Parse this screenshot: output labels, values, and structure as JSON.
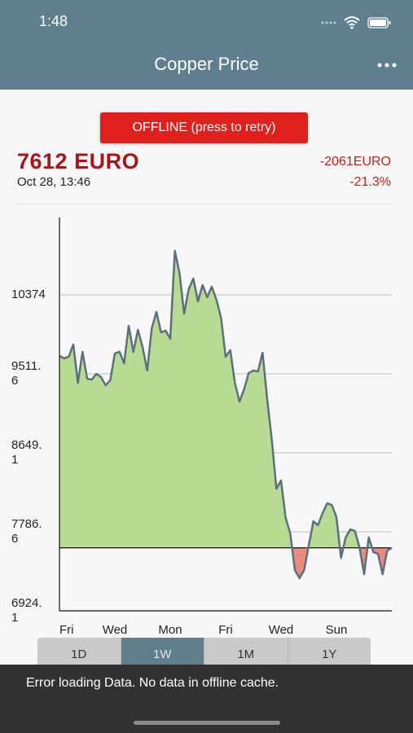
{
  "status_bar": {
    "time": "1:48"
  },
  "header": {
    "title": "Copper Price"
  },
  "offline_button": "OFFLINE (press to retry)",
  "quote": {
    "price": "7612 EURO",
    "timestamp": "Oct 28, 13:46",
    "change": "-2061EURO",
    "change_percent": "-21.3%"
  },
  "chart_data": {
    "type": "area",
    "x": [
      0,
      1,
      2,
      3,
      4,
      5,
      6,
      7,
      8,
      9,
      10,
      11,
      12,
      13,
      14,
      15,
      16,
      17,
      18,
      19,
      20,
      21,
      22,
      23,
      24,
      25,
      26,
      27,
      28,
      29,
      30,
      31,
      32,
      33,
      34,
      35,
      36,
      37,
      38,
      39,
      40,
      41,
      42,
      43,
      44,
      45,
      46,
      47,
      48,
      49,
      50,
      51,
      52,
      53,
      54,
      55,
      56,
      57,
      58,
      59,
      60,
      61,
      62,
      63,
      64,
      65,
      66,
      67,
      68,
      69,
      70,
      71,
      72
    ],
    "values": [
      9707,
      9681,
      9698,
      9832,
      9414,
      9752,
      9458,
      9449,
      9512,
      9476,
      9387,
      9441,
      9734,
      9752,
      9627,
      10036,
      9752,
      9992,
      9805,
      9547,
      10010,
      10188,
      9965,
      9983,
      9894,
      10854,
      10614,
      10170,
      10436,
      10552,
      10303,
      10481,
      10348,
      10463,
      10321,
      10125,
      9698,
      9770,
      9414,
      9209,
      9343,
      9521,
      9547,
      9538,
      9743,
      9236,
      8791,
      8258,
      8347,
      7938,
      7769,
      7369,
      7280,
      7369,
      7636,
      7902,
      7858,
      7991,
      8098,
      8080,
      7947,
      7502,
      7724,
      7813,
      7796,
      7618,
      7324,
      7724,
      7564,
      7547,
      7324,
      7582,
      7612
    ],
    "baseline": 7612,
    "above_color": "#b8da92",
    "below_color": "#ef8a80",
    "line_color": "#5b6f7c",
    "xlim": [
      0,
      72
    ],
    "xticks": [
      {
        "value": 0,
        "label": "Fri"
      },
      {
        "value": 12,
        "label": "Wed"
      },
      {
        "value": 24,
        "label": "Mon"
      },
      {
        "value": 36,
        "label": "Fri"
      },
      {
        "value": 48,
        "label": "Wed"
      },
      {
        "value": 60,
        "label": "Sun"
      }
    ],
    "ylim": [
      6924.1,
      11219
    ],
    "yticks": [
      10374,
      9511.6,
      8649.1,
      7786.6,
      6924.1
    ],
    "grid": true
  },
  "range_selector": {
    "options": [
      "1D",
      "1W",
      "1M",
      "1Y"
    ],
    "selected_index": 1
  },
  "snackbar": {
    "message": "Error loading Data. No data in offline cache."
  }
}
